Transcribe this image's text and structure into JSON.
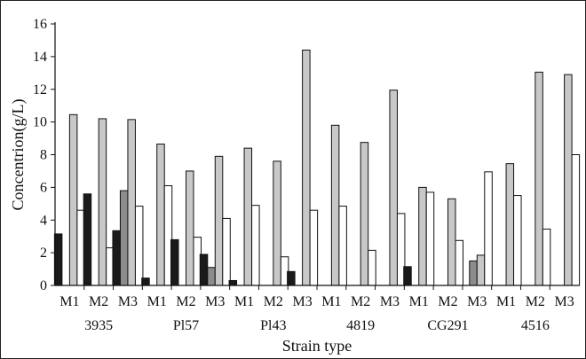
{
  "chart_data": {
    "type": "bar",
    "title": "",
    "xlabel": "Strain type",
    "ylabel": "Concentrion(g/L)",
    "ylim": [
      0,
      16
    ],
    "yticks": [
      0,
      2,
      4,
      6,
      8,
      10,
      12,
      14,
      16
    ],
    "grid": false,
    "legend": "none",
    "groups": [
      "3935",
      "Pl57",
      "Pl43",
      "4819",
      "CG291",
      "4516"
    ],
    "subcategories": [
      "M1",
      "M2",
      "M3"
    ],
    "series_colors": [
      "#1a1a1a",
      "#8c8c8c",
      "#c8c8c8",
      "#ffffff"
    ],
    "series": [
      {
        "values": [
          [
            3.15,
            5.6,
            3.35
          ],
          [
            0.45,
            2.8,
            1.9
          ],
          [
            0.3,
            0,
            0.85
          ],
          [
            0,
            0,
            0
          ],
          [
            1.15,
            0,
            0
          ],
          [
            0,
            0,
            0
          ]
        ]
      },
      {
        "values": [
          [
            0,
            0,
            5.8
          ],
          [
            0,
            0,
            1.1
          ],
          [
            0,
            0,
            0
          ],
          [
            0,
            0,
            0
          ],
          [
            0,
            0,
            1.5
          ],
          [
            0,
            0,
            0
          ]
        ]
      },
      {
        "values": [
          [
            10.45,
            10.2,
            10.15
          ],
          [
            8.65,
            7.0,
            7.9
          ],
          [
            8.4,
            7.6,
            14.4
          ],
          [
            9.8,
            8.75,
            11.95
          ],
          [
            6.0,
            5.3,
            1.85
          ],
          [
            7.45,
            13.05,
            12.9
          ]
        ]
      },
      {
        "values": [
          [
            4.6,
            2.3,
            4.85
          ],
          [
            6.1,
            2.95,
            4.1
          ],
          [
            4.9,
            1.75,
            4.6
          ],
          [
            4.85,
            2.15,
            4.4
          ],
          [
            5.7,
            2.75,
            6.95
          ],
          [
            5.5,
            3.45,
            8.0
          ]
        ]
      }
    ]
  }
}
